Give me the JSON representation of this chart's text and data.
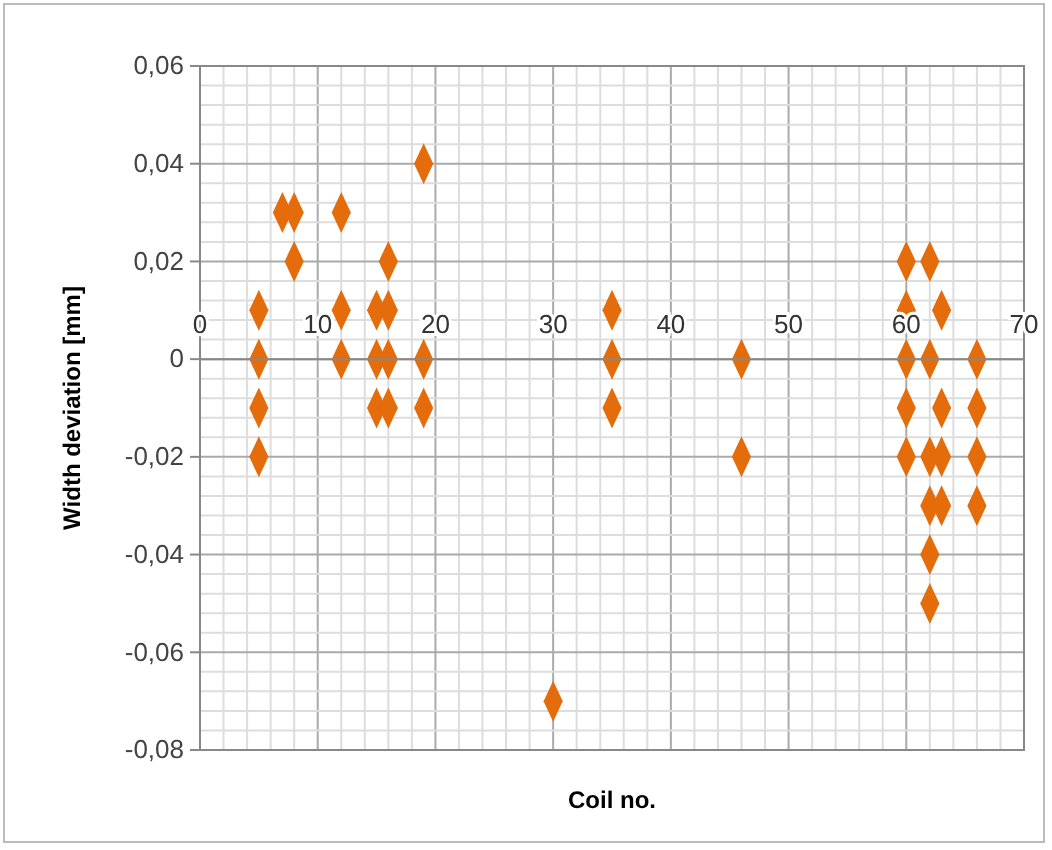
{
  "chart_data": {
    "type": "scatter",
    "xlabel": "Coil no.",
    "ylabel": "Width deviation [mm]",
    "marker": "diamond",
    "grid": true,
    "xlim": [
      0,
      70
    ],
    "xticks": [
      0,
      10,
      20,
      30,
      40,
      50,
      60,
      70
    ],
    "ylim": [
      -0.08,
      0.06
    ],
    "yticks": [
      {
        "value": -0.08,
        "label": "-0,08"
      },
      {
        "value": -0.06,
        "label": "-0,06"
      },
      {
        "value": -0.04,
        "label": "-0,04"
      },
      {
        "value": -0.02,
        "label": "-0,02"
      },
      {
        "value": 0,
        "label": "0"
      },
      {
        "value": 0.02,
        "label": "0,02"
      },
      {
        "value": 0.04,
        "label": "0,04"
      },
      {
        "value": 0.06,
        "label": "0,06"
      }
    ],
    "series": [
      {
        "color": "#e46c0a",
        "x": [
          5,
          5,
          5,
          5,
          7,
          8,
          8,
          12,
          12,
          12,
          15,
          15,
          15,
          16,
          16,
          16,
          16,
          19,
          19,
          19,
          30,
          35,
          35,
          35,
          46,
          46,
          60,
          60,
          60,
          60,
          60,
          62,
          62,
          62,
          62,
          62,
          62,
          63,
          63,
          63,
          63,
          66,
          66,
          66,
          66
        ],
        "values": [
          0.01,
          0,
          -0.01,
          -0.02,
          0.03,
          0.03,
          0.02,
          0.03,
          0.01,
          0,
          0.01,
          0,
          -0.01,
          0.02,
          0.01,
          0,
          -0.01,
          0.04,
          0,
          -0.01,
          -0.07,
          0.01,
          0,
          -0.01,
          0,
          -0.02,
          0.02,
          0.01,
          0,
          -0.01,
          -0.02,
          0.02,
          0,
          -0.02,
          -0.03,
          -0.04,
          -0.05,
          0.01,
          -0.01,
          -0.02,
          -0.03,
          0,
          -0.01,
          -0.02,
          -0.03
        ]
      }
    ]
  }
}
